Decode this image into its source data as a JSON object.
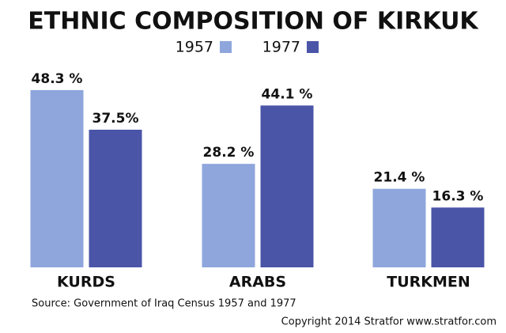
{
  "chart_data": {
    "type": "bar",
    "title": "ETHNIC COMPOSITION OF KIRKUK",
    "categories": [
      "KURDS",
      "ARABS",
      "TURKMEN"
    ],
    "series": [
      {
        "name": "1957",
        "color": "#8ea6dc",
        "values": [
          48.3,
          28.2,
          21.4
        ],
        "value_labels": [
          "48.3 %",
          "28.2 %",
          "21.4 %"
        ]
      },
      {
        "name": "1977",
        "color": "#4a55a8",
        "values": [
          37.5,
          44.1,
          16.3
        ],
        "value_labels": [
          "37.5%",
          "44.1 %",
          "16.3 %"
        ]
      }
    ],
    "source": "Source: Government of Iraq Census  1957 and 1977",
    "copyright": "Copyright 2014 Stratfor www.stratfor.com"
  }
}
